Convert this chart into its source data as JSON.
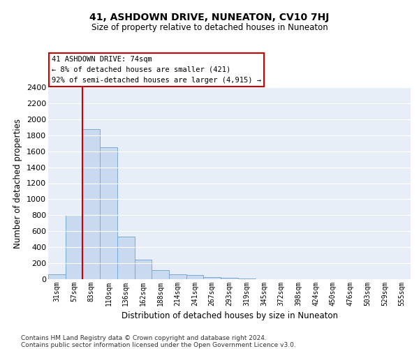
{
  "title": "41, ASHDOWN DRIVE, NUNEATON, CV10 7HJ",
  "subtitle": "Size of property relative to detached houses in Nuneaton",
  "xlabel": "Distribution of detached houses by size in Nuneaton",
  "ylabel": "Number of detached properties",
  "bar_color": "#c8d9f0",
  "bar_edge_color": "#7aaad4",
  "background_color": "#e8eef8",
  "grid_color": "#ffffff",
  "categories": [
    "31sqm",
    "57sqm",
    "83sqm",
    "110sqm",
    "136sqm",
    "162sqm",
    "188sqm",
    "214sqm",
    "241sqm",
    "267sqm",
    "293sqm",
    "319sqm",
    "345sqm",
    "372sqm",
    "398sqm",
    "424sqm",
    "450sqm",
    "476sqm",
    "503sqm",
    "529sqm",
    "555sqm"
  ],
  "values": [
    60,
    800,
    1880,
    1650,
    530,
    245,
    110,
    60,
    50,
    30,
    20,
    5,
    3,
    2,
    1,
    0,
    0,
    0,
    0,
    0,
    0
  ],
  "ylim": [
    0,
    2400
  ],
  "yticks": [
    0,
    200,
    400,
    600,
    800,
    1000,
    1200,
    1400,
    1600,
    1800,
    2000,
    2200,
    2400
  ],
  "annotation_line1": "41 ASHDOWN DRIVE: 74sqm",
  "annotation_line2": "← 8% of detached houses are smaller (421)",
  "annotation_line3": "92% of semi-detached houses are larger (4,915) →",
  "annotation_box_color": "#ffffff",
  "annotation_box_edge_color": "#cc0000",
  "vline_x_index": 2,
  "vline_color": "#cc0000",
  "footer_text": "Contains HM Land Registry data © Crown copyright and database right 2024.\nContains public sector information licensed under the Open Government Licence v3.0."
}
